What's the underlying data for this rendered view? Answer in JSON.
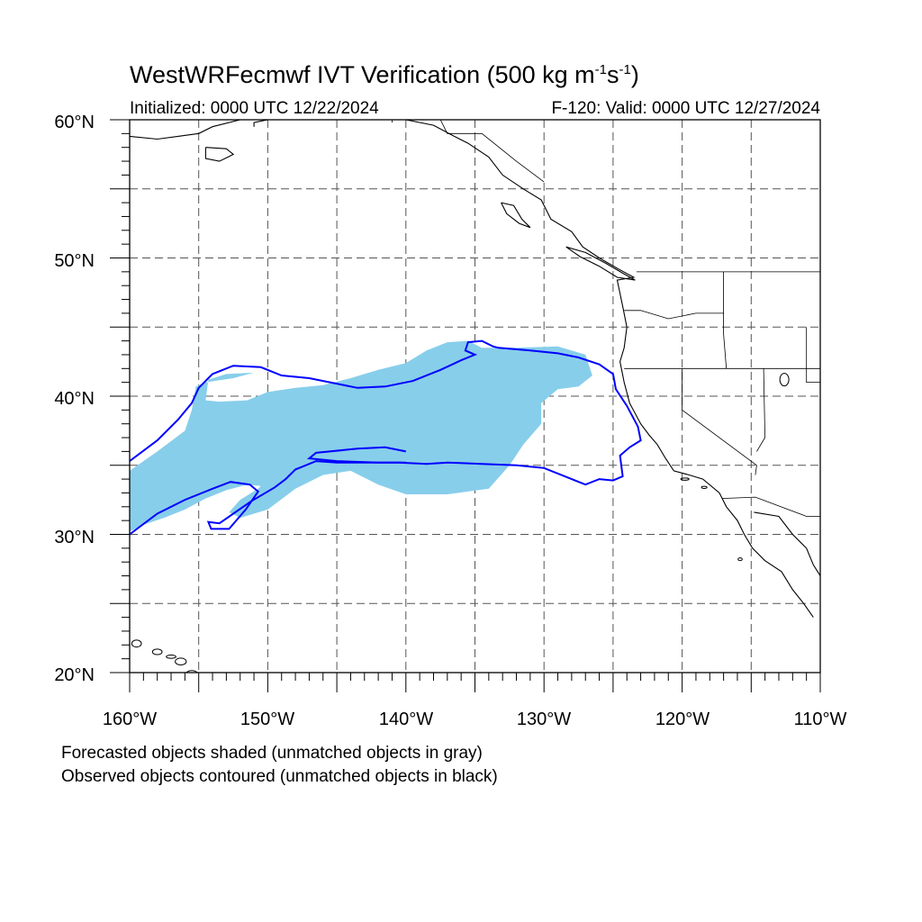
{
  "title": {
    "main": "WestWRFecmwf IVT Verification (500 kg m",
    "exp1": "-1",
    "mid": "s",
    "exp2": "-1",
    "end": ")"
  },
  "subtitle": {
    "initialized": "Initialized: 0000 UTC 12/22/2024",
    "valid": "F-120: Valid: 0000 UTC 12/27/2024"
  },
  "axes": {
    "lat_labels": [
      "60°N",
      "50°N",
      "40°N",
      "30°N",
      "20°N"
    ],
    "lon_labels": [
      "160°W",
      "150°W",
      "140°W",
      "130°W",
      "120°W",
      "110°W"
    ],
    "lat_range": [
      20,
      60
    ],
    "lon_range": [
      -160,
      -110
    ],
    "grid": "dashed every 5 degrees"
  },
  "captions": {
    "line1": "Forecasted objects shaded (unmatched objects in gray)",
    "line2": "Observed objects contoured (unmatched objects in black)"
  },
  "colors": {
    "forecast_fill": "#87ceeb",
    "observed_contour": "#0000ff",
    "coastline": "#000000",
    "grid": "#555555"
  },
  "features": {
    "forecast_object": [
      [
        -160,
        30.2
      ],
      [
        -159,
        30.7
      ],
      [
        -157.5,
        31.2
      ],
      [
        -156,
        31.8
      ],
      [
        -154.5,
        32.6
      ],
      [
        -153,
        33.2
      ],
      [
        -151.5,
        33.6
      ],
      [
        -150.5,
        33.5
      ],
      [
        -150.7,
        33.3
      ],
      [
        -152,
        32.5
      ],
      [
        -152.8,
        31.6
      ],
      [
        -152,
        31.2
      ],
      [
        -150,
        31.8
      ],
      [
        -148,
        33.3
      ],
      [
        -146,
        34.3
      ],
      [
        -144,
        34.6
      ],
      [
        -142,
        33.6
      ],
      [
        -140,
        32.9
      ],
      [
        -137,
        32.9
      ],
      [
        -134,
        33.3
      ],
      [
        -132.5,
        35
      ],
      [
        -131.5,
        36.5
      ],
      [
        -130.2,
        38
      ],
      [
        -130.2,
        39.5
      ],
      [
        -129,
        40.5
      ],
      [
        -127.5,
        40.7
      ],
      [
        -126.5,
        41.5
      ],
      [
        -127,
        43
      ],
      [
        -129,
        43.6
      ],
      [
        -132,
        43.5
      ],
      [
        -134.5,
        43.5
      ],
      [
        -135.5,
        44
      ],
      [
        -137,
        43.9
      ],
      [
        -138.5,
        43.3
      ],
      [
        -140,
        42.4
      ],
      [
        -142,
        41.9
      ],
      [
        -144,
        41.3
      ],
      [
        -146,
        40.8
      ],
      [
        -148,
        40.6
      ],
      [
        -150,
        40.3
      ],
      [
        -151.5,
        39.7
      ],
      [
        -153.5,
        39.6
      ],
      [
        -154.5,
        39.7
      ],
      [
        -154.3,
        41.2
      ],
      [
        -153,
        41.6
      ],
      [
        -151,
        41.7
      ],
      [
        -152.5,
        41.3
      ],
      [
        -154.5,
        41
      ],
      [
        -155.2,
        40.7
      ],
      [
        -155.5,
        39
      ],
      [
        -156,
        37.5
      ],
      [
        -158,
        36
      ],
      [
        -160,
        34.6
      ]
    ],
    "observed_main": [
      [
        -160,
        35.3
      ],
      [
        -158,
        36.8
      ],
      [
        -156.5,
        38.3
      ],
      [
        -155.5,
        39.5
      ],
      [
        -155,
        40.6
      ],
      [
        -154,
        41.6
      ],
      [
        -152.5,
        42.2
      ],
      [
        -150.5,
        42.1
      ],
      [
        -149,
        41.5
      ],
      [
        -147,
        41.3
      ],
      [
        -145.5,
        41
      ],
      [
        -143.5,
        40.6
      ],
      [
        -141.5,
        40.7
      ],
      [
        -139.5,
        41.1
      ],
      [
        -137.5,
        41.9
      ],
      [
        -136,
        42.6
      ],
      [
        -135,
        43
      ],
      [
        -135.7,
        43.3
      ],
      [
        -135.5,
        43.9
      ],
      [
        -134.5,
        44
      ],
      [
        -133.7,
        43.6
      ],
      [
        -133.3,
        43.5
      ],
      [
        -131,
        43.3
      ],
      [
        -129,
        43.1
      ],
      [
        -127.5,
        42.8
      ],
      [
        -126,
        42.3
      ],
      [
        -125,
        41.6
      ],
      [
        -124.8,
        40.5
      ],
      [
        -124,
        39.3
      ],
      [
        -123.2,
        37.8
      ],
      [
        -123,
        36.8
      ],
      [
        -123.8,
        36.3
      ],
      [
        -124.5,
        35.7
      ],
      [
        -124.3,
        34.2
      ],
      [
        -125,
        33.9
      ],
      [
        -126,
        34
      ],
      [
        -127,
        33.6
      ],
      [
        -128,
        34
      ],
      [
        -130,
        34.8
      ],
      [
        -132,
        35
      ],
      [
        -134.5,
        35.1
      ],
      [
        -137,
        35.2
      ],
      [
        -138.5,
        35.1
      ],
      [
        -140.5,
        35.2
      ],
      [
        -142,
        35.2
      ],
      [
        -143.5,
        35.2
      ],
      [
        -145,
        35.2
      ],
      [
        -146.5,
        35.3
      ],
      [
        -147.5,
        34.9
      ],
      [
        -148,
        34.7
      ],
      [
        -148.7,
        34
      ],
      [
        -149.5,
        33.4
      ],
      [
        -151.2,
        32.4
      ],
      [
        -152.5,
        31.5
      ],
      [
        -153.5,
        30.8
      ],
      [
        -154.3,
        30.9
      ],
      [
        -154.1,
        30.4
      ],
      [
        -152.8,
        30.4
      ],
      [
        -151.6,
        31.8
      ],
      [
        -150.7,
        33.1
      ],
      [
        -151.3,
        33.6
      ],
      [
        -152.7,
        33.8
      ],
      [
        -154,
        33.3
      ],
      [
        -156,
        32.5
      ],
      [
        -158,
        31.5
      ],
      [
        -160,
        30
      ]
    ],
    "observed_loop": [
      [
        -140,
        36
      ],
      [
        -141.5,
        36.3
      ],
      [
        -143.5,
        36.2
      ],
      [
        -146.5,
        35.9
      ],
      [
        -147,
        35.5
      ],
      [
        -145,
        35.3
      ],
      [
        -142,
        35.2
      ],
      [
        -140,
        35.2
      ]
    ]
  }
}
